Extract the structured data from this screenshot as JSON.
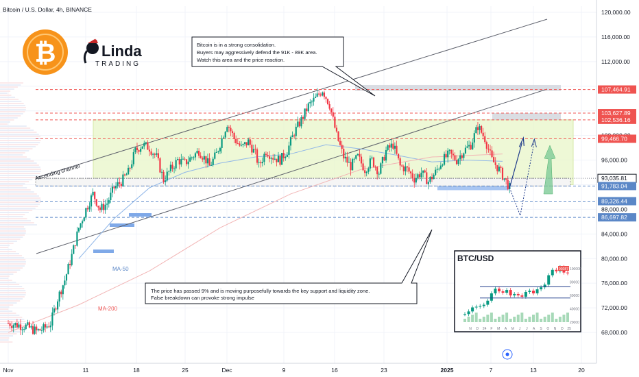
{
  "header": {
    "symbol_title": "Bitcoin / U.S. Dollar, 4h, BINANCE"
  },
  "logo": {
    "brand_line1": "Linda",
    "brand_line2": "TRADING"
  },
  "annotations": {
    "top_note": [
      "Bitcoin is in a strong consolidation.",
      "Buyers may aggressively defend the 91K - 89K area.",
      "Watch this area and the price reaction."
    ],
    "bottom_note": [
      "The price has passed 9% and is moving purposefully towards the key support and liquidity zone.",
      "False breakdown can provoke strong impulse"
    ],
    "channel_label": "Ascending channel",
    "ma50_label": "MA-50",
    "ma200_label": "MA-200"
  },
  "inset": {
    "title": "BTC/USD",
    "y_ticks": [
      "100000",
      "80000",
      "60000",
      "40000",
      "20000"
    ],
    "price_tag": "93087",
    "x_labels": [
      "N",
      "D",
      "24",
      "F",
      "M",
      "A",
      "M",
      "J",
      "J",
      "A",
      "S",
      "O",
      "N",
      "D",
      "25"
    ]
  },
  "chart_data": {
    "type": "candlestick",
    "title": "Bitcoin / U.S. Dollar, 4h, BINANCE",
    "y_ticks": [
      68000,
      72000,
      76000,
      80000,
      84000,
      88000,
      92000,
      96000,
      100000,
      104000,
      108000,
      112000,
      116000,
      120000
    ],
    "y_tick_labels": [
      "68,000.00",
      "72,000.00",
      "76,000.00",
      "80,000.00",
      "84,000.00",
      "88,000.00",
      "",
      "96,000.00",
      "100,000.00",
      "",
      "",
      "112,000.00",
      "116,000.00",
      "120,000.00"
    ],
    "ylim": [
      66000,
      121000
    ],
    "x_tick_labels": [
      "Nov",
      "11",
      "18",
      "25",
      "Dec",
      "9",
      "16",
      "23",
      "2025",
      "7",
      "13",
      "20"
    ],
    "price_levels": [
      {
        "label": "107,464.91",
        "value": 107464.91,
        "color": "#ef5350"
      },
      {
        "label": "103,627.89",
        "value": 103627.89,
        "color": "#ef5350"
      },
      {
        "label": "102,536.16",
        "value": 102536.16,
        "color": "#ef5350"
      },
      {
        "label": "99,466.70",
        "value": 99466.7,
        "color": "#ef5350"
      },
      {
        "label": "93,035.81",
        "value": 93035.81,
        "color": "#ffffff"
      },
      {
        "label": "91,783.04",
        "value": 91783.04,
        "color": "#5b87c7"
      },
      {
        "label": "89,326.44",
        "value": 89326.44,
        "color": "#5b87c7"
      },
      {
        "label": "86,697.82",
        "value": 86697.82,
        "color": "#5b87c7"
      }
    ],
    "price_path": [
      [
        0,
        69500
      ],
      [
        5,
        69000
      ],
      [
        8,
        68200
      ],
      [
        10,
        68600
      ],
      [
        12,
        69500
      ],
      [
        14,
        73500
      ],
      [
        16,
        76500
      ],
      [
        18,
        80500
      ],
      [
        20,
        85000
      ],
      [
        22,
        88000
      ],
      [
        24,
        90500
      ],
      [
        26,
        88000
      ],
      [
        28,
        89000
      ],
      [
        30,
        91500
      ],
      [
        32,
        92500
      ],
      [
        34,
        94000
      ],
      [
        36,
        97500
      ],
      [
        38,
        98500
      ],
      [
        40,
        98000
      ],
      [
        42,
        96500
      ],
      [
        44,
        92800
      ],
      [
        46,
        94500
      ],
      [
        48,
        96000
      ],
      [
        50,
        95500
      ],
      [
        52,
        96500
      ],
      [
        54,
        97500
      ],
      [
        56,
        96000
      ],
      [
        57,
        95000
      ],
      [
        59,
        97000
      ],
      [
        62,
        102000
      ],
      [
        64,
        99500
      ],
      [
        66,
        98000
      ],
      [
        68,
        99000
      ],
      [
        70,
        97000
      ],
      [
        71,
        95000
      ],
      [
        73,
        97500
      ],
      [
        75,
        96500
      ],
      [
        77,
        96000
      ],
      [
        79,
        97500
      ],
      [
        81,
        100500
      ],
      [
        83,
        102500
      ],
      [
        85,
        104800
      ],
      [
        87,
        106000
      ],
      [
        89,
        107400
      ],
      [
        91,
        105000
      ],
      [
        93,
        100000
      ],
      [
        95,
        96500
      ],
      [
        97,
        95000
      ],
      [
        99,
        96500
      ],
      [
        101,
        94500
      ],
      [
        103,
        96000
      ],
      [
        105,
        94000
      ],
      [
        107,
        97500
      ],
      [
        109,
        98500
      ],
      [
        111,
        95000
      ],
      [
        113,
        94500
      ],
      [
        115,
        93000
      ],
      [
        117,
        94000
      ],
      [
        119,
        92500
      ],
      [
        121,
        94000
      ],
      [
        123,
        96000
      ],
      [
        125,
        97000
      ],
      [
        127,
        96000
      ],
      [
        129,
        97500
      ],
      [
        131,
        98500
      ],
      [
        133,
        101500
      ],
      [
        135,
        99500
      ],
      [
        137,
        96000
      ],
      [
        139,
        94500
      ],
      [
        141,
        92500
      ],
      [
        142,
        91500
      ]
    ],
    "ma50": [
      [
        20,
        80000
      ],
      [
        30,
        86500
      ],
      [
        40,
        91500
      ],
      [
        50,
        94000
      ],
      [
        60,
        95500
      ],
      [
        70,
        96500
      ],
      [
        80,
        97000
      ],
      [
        90,
        98500
      ],
      [
        100,
        97800
      ],
      [
        110,
        96800
      ],
      [
        120,
        95700
      ],
      [
        130,
        96000
      ],
      [
        140,
        95800
      ]
    ],
    "ma200": [
      [
        0,
        68000
      ],
      [
        20,
        72500
      ],
      [
        40,
        78000
      ],
      [
        60,
        85000
      ],
      [
        80,
        90500
      ],
      [
        100,
        94500
      ],
      [
        120,
        96500
      ],
      [
        140,
        97000
      ]
    ],
    "projection": [
      [
        142,
        91500
      ],
      [
        145,
        99000
      ],
      [
        142,
        91500
      ],
      [
        145,
        84500
      ],
      [
        149,
        99000
      ]
    ],
    "inset_series": [
      32000,
      36000,
      42000,
      43000,
      44000,
      46000,
      52000,
      63000,
      70000,
      66000,
      64000,
      68000,
      60000,
      62000,
      60000,
      58000,
      65000,
      67000,
      63000,
      69000,
      72000,
      76000,
      90000,
      98000,
      96000,
      102000,
      94000,
      93000
    ]
  }
}
